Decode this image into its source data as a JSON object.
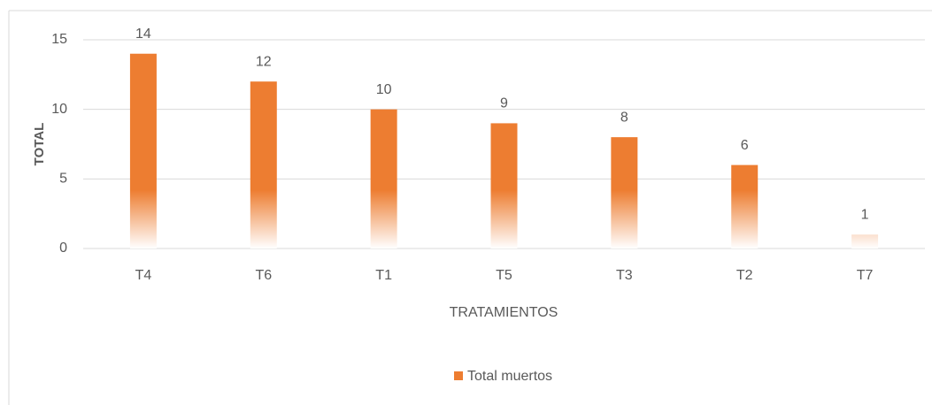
{
  "chart_data": {
    "type": "bar",
    "xlabel": "TRATAMIENTOS",
    "ylabel": "TOTAL",
    "categories": [
      "T4",
      "T6",
      "T1",
      "T5",
      "T3",
      "T2",
      "T7"
    ],
    "series": [
      {
        "name": "Total muertos",
        "color": "#ed7d31",
        "values": [
          14,
          12,
          10,
          9,
          8,
          6,
          1
        ]
      }
    ],
    "ylim": [
      0,
      15
    ],
    "yticks": [
      0,
      5,
      10,
      15
    ],
    "grid": true,
    "legend": "bottom"
  }
}
